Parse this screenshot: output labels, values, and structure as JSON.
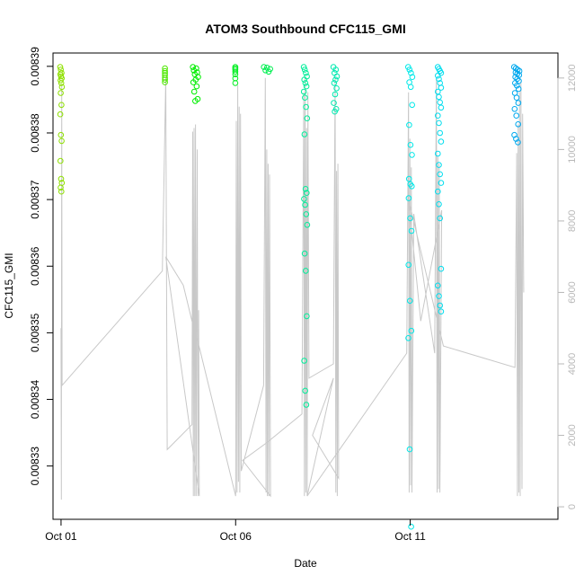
{
  "chart_data": {
    "type": "scatter",
    "title": "ATOM3 Southbound CFC115_GMI",
    "xlabel": "Date",
    "ylabel": "CFC115_GMI",
    "x_ticks": [
      {
        "label": "Oct 01",
        "value": 1
      },
      {
        "label": "Oct 06",
        "value": 6
      },
      {
        "label": "Oct 11",
        "value": 11
      }
    ],
    "xlim": [
      0.77,
      15.23
    ],
    "ylim": [
      0.008322,
      0.008392
    ],
    "y_ticks": [
      0.00833,
      0.00834,
      0.00835,
      0.00836,
      0.00837,
      0.00838,
      0.00839
    ],
    "y_tick_labels": [
      "0.00833",
      "0.00834",
      "0.00835",
      "0.00836",
      "0.00837",
      "0.00838",
      "0.00839"
    ],
    "y2lim": [
      -350,
      12700
    ],
    "y2_ticks": [
      0,
      2000,
      4000,
      6000,
      8000,
      10000,
      12000
    ],
    "y2_tick_labels": [
      "0",
      "2000",
      "4000",
      "6000",
      "8000",
      "10000",
      "12000"
    ],
    "grid": false,
    "legend": "none",
    "colors": {
      "altitude_line": "#c8c8c8",
      "frame": "#000000",
      "right_axis": "#b8b8b8",
      "point_gradient": [
        "#8ee000",
        "#00ee00",
        "#00ee9a",
        "#00e8e8",
        "#00a8ee"
      ]
    },
    "altitude_series": {
      "name": "Altitude",
      "path": [
        [
          1.0,
          5000
        ],
        [
          1.01,
          200
        ],
        [
          1.02,
          11800
        ],
        [
          1.03,
          3400
        ],
        [
          3.9,
          6600
        ],
        [
          4.0,
          12000
        ],
        [
          4.02,
          6800
        ],
        [
          4.04,
          1600
        ],
        [
          4.75,
          2300
        ],
        [
          4.77,
          10500
        ],
        [
          4.79,
          300
        ],
        [
          4.81,
          10600
        ],
        [
          4.83,
          300
        ],
        [
          4.85,
          10700
        ],
        [
          4.87,
          300
        ],
        [
          4.9,
          10000
        ],
        [
          4.92,
          300
        ],
        [
          4.94,
          5500
        ],
        [
          4.96,
          300
        ],
        [
          4.0,
          7000
        ],
        [
          4.5,
          6200
        ],
        [
          4.8,
          5000
        ],
        [
          4.95,
          4500
        ],
        [
          6.0,
          300
        ],
        [
          6.02,
          10800
        ],
        [
          6.04,
          400
        ],
        [
          6.06,
          11800
        ],
        [
          6.08,
          700
        ],
        [
          6.1,
          11200
        ],
        [
          6.12,
          400
        ],
        [
          6.14,
          11000
        ],
        [
          6.16,
          1000
        ],
        [
          6.8,
          3400
        ],
        [
          6.85,
          12000
        ],
        [
          6.87,
          400
        ],
        [
          6.89,
          10000
        ],
        [
          6.91,
          300
        ],
        [
          6.93,
          9600
        ],
        [
          6.95,
          300
        ],
        [
          6.97,
          9300
        ],
        [
          7.0,
          300
        ],
        [
          6.2,
          1300
        ],
        [
          6.9,
          1800
        ],
        [
          7.9,
          2600
        ],
        [
          7.95,
          11600
        ],
        [
          7.97,
          300
        ],
        [
          7.99,
          12000
        ],
        [
          8.01,
          400
        ],
        [
          8.03,
          10600
        ],
        [
          8.05,
          300
        ],
        [
          8.07,
          11600
        ],
        [
          8.1,
          3600
        ],
        [
          8.8,
          4000
        ],
        [
          8.85,
          12000
        ],
        [
          8.87,
          400
        ],
        [
          8.89,
          9400
        ],
        [
          8.91,
          300
        ],
        [
          8.93,
          9600
        ],
        [
          8.95,
          800
        ],
        [
          8.2,
          2000
        ],
        [
          8.8,
          3600
        ],
        [
          8.05,
          300
        ],
        [
          10.9,
          4300
        ],
        [
          10.95,
          11600
        ],
        [
          10.97,
          400
        ],
        [
          10.99,
          10300
        ],
        [
          11.01,
          600
        ],
        [
          11.03,
          9500
        ],
        [
          11.05,
          400
        ],
        [
          11.1,
          8200
        ],
        [
          11.7,
          4300
        ],
        [
          11.75,
          12000
        ],
        [
          11.77,
          400
        ],
        [
          11.79,
          9800
        ],
        [
          11.81,
          500
        ],
        [
          11.83,
          9600
        ],
        [
          11.85,
          400
        ],
        [
          11.9,
          8300
        ],
        [
          11.3,
          5200
        ],
        [
          10.95,
          8600
        ],
        [
          11.95,
          4500
        ],
        [
          14.0,
          3900
        ],
        [
          14.05,
          9900
        ],
        [
          14.07,
          300
        ],
        [
          14.09,
          10700
        ],
        [
          14.11,
          400
        ],
        [
          14.13,
          11600
        ],
        [
          14.15,
          300
        ],
        [
          14.17,
          11900
        ],
        [
          14.2,
          500
        ],
        [
          14.22,
          11000
        ],
        [
          14.25,
          6000
        ]
      ]
    },
    "point_groups": [
      {
        "x_center": 1.0,
        "x_spread": 0.05,
        "color": "#8ee000",
        "y": [
          0.0083899,
          0.0083895,
          0.008389,
          0.0083888,
          0.0083885,
          0.0083882,
          0.0083879,
          0.0083875,
          0.0083869,
          0.008386,
          0.0083842,
          0.0083828,
          0.0083797,
          0.0083788,
          0.0083758,
          0.0083731,
          0.0083725,
          0.0083718,
          0.0083712
        ]
      },
      {
        "x_center": 4.0,
        "x_spread": 0.05,
        "color": "#4ee800",
        "y": [
          0.0083897,
          0.0083893,
          0.008389,
          0.0083887,
          0.0083883,
          0.008388,
          0.0083876
        ]
      },
      {
        "x_center": 4.85,
        "x_spread": 0.15,
        "color": "#00ee00",
        "y": [
          0.0083899,
          0.0083897,
          0.0083894,
          0.0083891,
          0.0083888,
          0.0083884,
          0.008388,
          0.0083876,
          0.008387,
          0.0083862,
          0.0083851,
          0.0083848
        ]
      },
      {
        "x_center": 6.05,
        "x_spread": 0.12,
        "color": "#00ee20",
        "y": [
          0.0083899,
          0.0083897,
          0.0083895,
          0.0083892,
          0.0083888,
          0.0083882,
          0.0083875
        ]
      },
      {
        "x_center": 6.9,
        "x_spread": 0.18,
        "color": "#00ee50",
        "y": [
          0.0083899,
          0.0083898,
          0.0083896,
          0.0083894,
          0.0083892
        ]
      },
      {
        "x_center": 8.0,
        "x_spread": 0.1,
        "color": "#00ee9a",
        "y": [
          0.0083899,
          0.0083895,
          0.008389,
          0.0083885,
          0.008388,
          0.0083875,
          0.008387,
          0.0083862,
          0.0083853,
          0.0083839,
          0.0083822,
          0.0083798,
          0.0083716,
          0.008371,
          0.0083701,
          0.0083692,
          0.0083678,
          0.0083662,
          0.0083619,
          0.0083593,
          0.0083525,
          0.0083458,
          0.0083413,
          0.0083392
        ]
      },
      {
        "x_center": 8.85,
        "x_spread": 0.1,
        "color": "#00eab0",
        "y": [
          0.0083899,
          0.0083895,
          0.008389,
          0.0083885,
          0.008388,
          0.0083875,
          0.0083867,
          0.0083858,
          0.0083845,
          0.0083836,
          0.0083832
        ]
      },
      {
        "x_center": 11.0,
        "x_spread": 0.12,
        "color": "#00e8e8",
        "y": [
          0.0083899,
          0.0083895,
          0.008389,
          0.0083884,
          0.0083876,
          0.0083869,
          0.0083842,
          0.0083812,
          0.0083782,
          0.0083767,
          0.0083731,
          0.0083723,
          0.008372,
          0.0083702,
          0.0083672,
          0.0083653,
          0.0083602,
          0.0083548,
          0.0083503,
          0.0083492,
          0.0083325,
          0.0083209
        ]
      },
      {
        "x_center": 11.85,
        "x_spread": 0.12,
        "color": "#00ddee",
        "y": [
          0.0083899,
          0.0083896,
          0.0083893,
          0.008389,
          0.0083886,
          0.0083881,
          0.0083875,
          0.0083868,
          0.0083862,
          0.0083854,
          0.0083846,
          0.0083838,
          0.0083826,
          0.0083815,
          0.00838,
          0.0083787,
          0.0083769,
          0.0083752,
          0.0083738,
          0.0083725,
          0.0083712,
          0.0083693,
          0.0083672,
          0.0083596,
          0.0083571,
          0.0083555,
          0.0083541,
          0.0083532
        ]
      },
      {
        "x_center": 14.05,
        "x_spread": 0.15,
        "color": "#00a8ee",
        "y": [
          0.0083899,
          0.0083897,
          0.0083895,
          0.0083893,
          0.0083891,
          0.0083889,
          0.0083887,
          0.0083884,
          0.0083881,
          0.0083878,
          0.0083875,
          0.0083871,
          0.0083866,
          0.008386,
          0.0083853,
          0.0083845,
          0.0083836,
          0.0083826,
          0.0083813,
          0.0083797,
          0.0083791,
          0.0083786
        ]
      }
    ]
  }
}
